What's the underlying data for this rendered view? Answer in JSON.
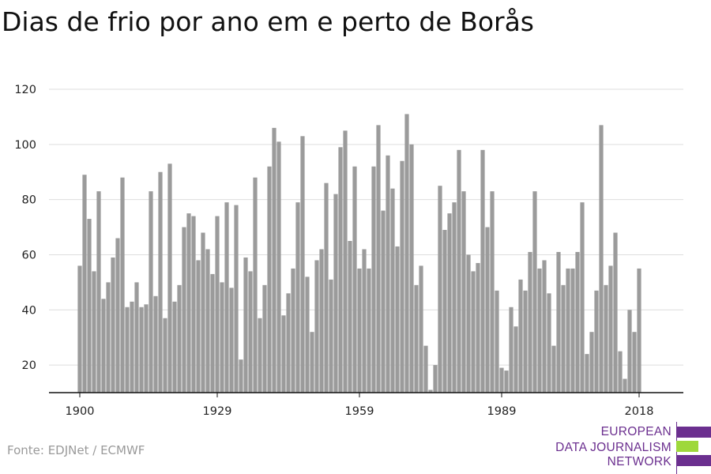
{
  "title": "Dias de frio por ano em e perto de Borås",
  "source": "Fonte: EDJNet / ECMWF",
  "logo": {
    "lines": [
      "EUROPEAN",
      "DATA JOURNALISM",
      "NETWORK"
    ],
    "colors": {
      "primary": "#6b2f8f",
      "accent": "#9ed83b"
    }
  },
  "chart_data": {
    "type": "bar",
    "title": "Dias de frio por ano em e perto de Borås",
    "xlabel": "",
    "ylabel": "",
    "x_start": 1900,
    "x_end": 2018,
    "x_ticks": [
      1900,
      1929,
      1959,
      1989,
      2018
    ],
    "y_ticks": [
      20,
      40,
      60,
      80,
      100,
      120
    ],
    "ylim": [
      10,
      120
    ],
    "grid": true,
    "bar_color": "#9b9b9b",
    "values": [
      56,
      89,
      73,
      54,
      83,
      44,
      50,
      59,
      66,
      88,
      41,
      43,
      50,
      41,
      42,
      83,
      45,
      90,
      37,
      93,
      43,
      49,
      70,
      75,
      74,
      58,
      68,
      62,
      53,
      74,
      50,
      79,
      48,
      78,
      22,
      59,
      54,
      88,
      37,
      49,
      92,
      106,
      101,
      38,
      46,
      55,
      79,
      103,
      52,
      32,
      58,
      62,
      86,
      51,
      82,
      99,
      105,
      65,
      92,
      55,
      62,
      55,
      92,
      107,
      76,
      96,
      84,
      63,
      94,
      111,
      100,
      49,
      56,
      27,
      11,
      20,
      85,
      69,
      75,
      79,
      98,
      83,
      60,
      54,
      57,
      98,
      70,
      83,
      47,
      19,
      18,
      41,
      34,
      51,
      47,
      61,
      83,
      55,
      58,
      46,
      27,
      61,
      49,
      55,
      55,
      61,
      79,
      24,
      32,
      47,
      107,
      49,
      56,
      68,
      25,
      15,
      40,
      32,
      55
    ]
  }
}
